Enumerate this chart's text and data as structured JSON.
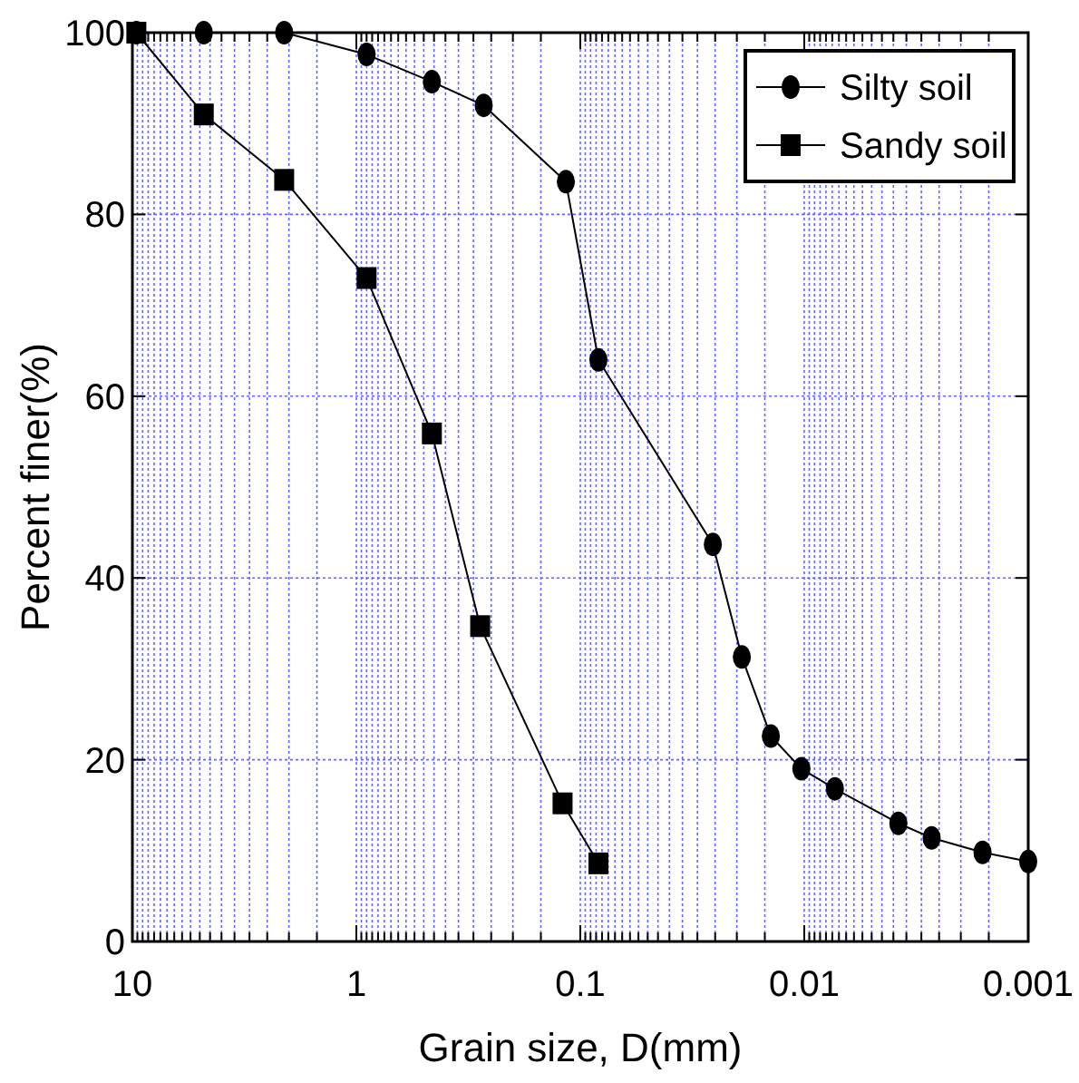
{
  "chart_data": {
    "type": "line",
    "xlabel": "Grain size, D(mm)",
    "ylabel": "Percent finer(%)",
    "log": "x",
    "xlim": [
      10,
      0.001
    ],
    "xticks": [
      10,
      1,
      0.1,
      0.01,
      0.001
    ],
    "ylim": [
      0,
      100
    ],
    "yticks": [
      0,
      20,
      40,
      60,
      80,
      100
    ],
    "grid": true,
    "legend": "top right",
    "line_style": "solid",
    "series": [
      {
        "name": "Silty soil",
        "color": "#000000",
        "marker": "circle",
        "x": [
          9.6,
          4.8,
          2.1,
          0.9,
          0.46,
          0.27,
          0.116,
          0.083,
          0.0256,
          0.019,
          0.0141,
          0.0103,
          0.0073,
          0.0038,
          0.0027,
          0.0016,
          0.001
        ],
        "values": [
          100,
          100,
          100,
          97.6,
          94.6,
          92,
          83.6,
          64,
          43.7,
          31.3,
          22.6,
          19,
          16.8,
          13,
          11.4,
          9.8,
          8.8
        ]
      },
      {
        "name": "Sandy soil",
        "color": "#000000",
        "marker": "square",
        "x": [
          9.6,
          4.8,
          2.1,
          0.9,
          0.46,
          0.28,
          0.12,
          0.083
        ],
        "values": [
          100,
          91,
          83.8,
          73,
          55.9,
          34.7,
          15.2,
          8.6
        ]
      }
    ]
  }
}
